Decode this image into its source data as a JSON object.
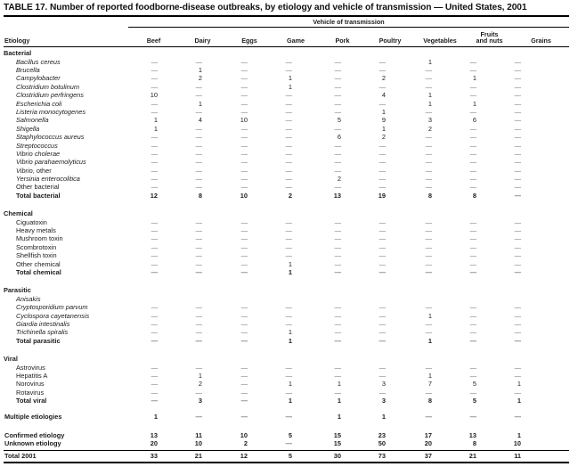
{
  "title": "TABLE 17. Number of reported foodborne-disease outbreaks, by etiology and vehicle of transmission — United States, 2001",
  "table": {
    "group_header": "Vehicle of transmission",
    "etiology_header": "Etiology",
    "columns": [
      "Beef",
      "Dairy",
      "Eggs",
      "Game",
      "Pork",
      "Poultry",
      "Vegetables",
      "Fruits\nand nuts",
      "Grains"
    ],
    "blocks": [
      {
        "type": "section",
        "label": "Bacterial",
        "rows": [
          {
            "label": "Bacillus cereus",
            "italic": true,
            "values": [
              "—",
              "—",
              "—",
              "—",
              "—",
              "—",
              "1",
              "—",
              "—"
            ]
          },
          {
            "label": "Brucella",
            "italic": true,
            "values": [
              "—",
              "1",
              "—",
              "—",
              "—",
              "—",
              "—",
              "—",
              "—"
            ]
          },
          {
            "label": "Campylobacter",
            "italic": true,
            "values": [
              "—",
              "2",
              "—",
              "1",
              "—",
              "2",
              "—",
              "1",
              "—"
            ]
          },
          {
            "label": "Clostridium botulinum",
            "italic": true,
            "values": [
              "—",
              "—",
              "—",
              "1",
              "—",
              "—",
              "—",
              "—",
              "—"
            ]
          },
          {
            "label": "Clostridium perfringens",
            "italic": true,
            "values": [
              "10",
              "—",
              "—",
              "—",
              "—",
              "4",
              "1",
              "—",
              "—"
            ]
          },
          {
            "label": "Escherichia coli",
            "italic": true,
            "values": [
              "—",
              "1",
              "—",
              "—",
              "—",
              "—",
              "1",
              "1",
              "—"
            ]
          },
          {
            "label": "Listeria monocytogenes",
            "italic": true,
            "values": [
              "—",
              "—",
              "—",
              "—",
              "—",
              "1",
              "—",
              "—",
              "—"
            ]
          },
          {
            "label": "Salmonella",
            "italic": true,
            "values": [
              "1",
              "4",
              "10",
              "—",
              "5",
              "9",
              "3",
              "6",
              "—"
            ]
          },
          {
            "label": "Shigella",
            "italic": true,
            "values": [
              "1",
              "—",
              "—",
              "—",
              "—",
              "1",
              "2",
              "—",
              "—"
            ]
          },
          {
            "label": "Staphylococcus aureus",
            "italic": true,
            "values": [
              "—",
              "—",
              "—",
              "—",
              "6",
              "2",
              "—",
              "—",
              "—"
            ]
          },
          {
            "label": "Streptococcus",
            "italic": true,
            "values": [
              "—",
              "—",
              "—",
              "—",
              "—",
              "—",
              "—",
              "—",
              "—"
            ]
          },
          {
            "label": "Vibrio cholerae",
            "italic": true,
            "values": [
              "—",
              "—",
              "—",
              "—",
              "—",
              "—",
              "—",
              "—",
              "—"
            ]
          },
          {
            "label": "Vibrio parahaemolyticus",
            "italic": true,
            "values": [
              "—",
              "—",
              "—",
              "—",
              "—",
              "—",
              "—",
              "—",
              "—"
            ]
          },
          {
            "label": "Vibrio",
            "suffix": ", other",
            "italic": true,
            "values": [
              "—",
              "—",
              "—",
              "—",
              "—",
              "—",
              "—",
              "—",
              "—"
            ]
          },
          {
            "label": "Yersinia enterocolitica",
            "italic": true,
            "values": [
              "—",
              "—",
              "—",
              "—",
              "2",
              "—",
              "—",
              "—",
              "—"
            ]
          },
          {
            "label": "Other bacterial",
            "values": [
              "—",
              "—",
              "—",
              "—",
              "—",
              "—",
              "—",
              "—",
              "—"
            ]
          },
          {
            "label": "Total bacterial",
            "bold": true,
            "values": [
              "12",
              "8",
              "10",
              "2",
              "13",
              "19",
              "8",
              "8",
              "—"
            ]
          }
        ]
      },
      {
        "type": "section",
        "label": "Chemical",
        "rows": [
          {
            "label": "Ciguatoxin",
            "values": [
              "—",
              "—",
              "—",
              "—",
              "—",
              "—",
              "—",
              "—",
              "—"
            ]
          },
          {
            "label": "Heavy metals",
            "values": [
              "—",
              "—",
              "—",
              "—",
              "—",
              "—",
              "—",
              "—",
              "—"
            ]
          },
          {
            "label": "Mushroom toxin",
            "values": [
              "—",
              "—",
              "—",
              "—",
              "—",
              "—",
              "—",
              "—",
              "—"
            ]
          },
          {
            "label": "Scombrotoxin",
            "values": [
              "—",
              "—",
              "—",
              "—",
              "—",
              "—",
              "—",
              "—",
              "—"
            ]
          },
          {
            "label": "Shellfish toxin",
            "values": [
              "—",
              "—",
              "—",
              "—",
              "—",
              "—",
              "—",
              "—",
              "—"
            ]
          },
          {
            "label": "Other chemical",
            "values": [
              "—",
              "—",
              "—",
              "1",
              "—",
              "—",
              "—",
              "—",
              "—"
            ]
          },
          {
            "label": "Total chemical",
            "bold": true,
            "values": [
              "—",
              "—",
              "—",
              "1",
              "—",
              "—",
              "—",
              "—",
              "—"
            ]
          }
        ]
      },
      {
        "type": "section",
        "label": "Parasitic",
        "rows": [
          {
            "label": "Anisakis",
            "italic": true,
            "values": [
              "",
              "",
              "",
              "",
              "",
              "",
              "",
              "",
              ""
            ]
          },
          {
            "label": "Cryptosporidium parvum",
            "italic": true,
            "values": [
              "—",
              "—",
              "—",
              "—",
              "—",
              "—",
              "—",
              "—",
              "—"
            ]
          },
          {
            "label": "Cyclospora cayetanensis",
            "italic": true,
            "values": [
              "—",
              "—",
              "—",
              "—",
              "—",
              "—",
              "1",
              "—",
              "—"
            ]
          },
          {
            "label": "Giardia intestinalis",
            "italic": true,
            "values": [
              "—",
              "—",
              "—",
              "—",
              "—",
              "—",
              "—",
              "—",
              "—"
            ]
          },
          {
            "label": "Trichinella spiralis",
            "italic": true,
            "values": [
              "—",
              "—",
              "—",
              "1",
              "—",
              "—",
              "—",
              "—",
              "—"
            ]
          },
          {
            "label": "Total parasitic",
            "bold": true,
            "values": [
              "—",
              "—",
              "—",
              "1",
              "—",
              "—",
              "1",
              "—",
              "—"
            ]
          }
        ]
      },
      {
        "type": "section",
        "label": "Viral",
        "rows": [
          {
            "label": "Astrovirus",
            "values": [
              "—",
              "—",
              "—",
              "—",
              "—",
              "—",
              "—",
              "—",
              "—"
            ]
          },
          {
            "label": "Hepatitis A",
            "values": [
              "—",
              "1",
              "—",
              "—",
              "—",
              "—",
              "1",
              "—",
              "—"
            ]
          },
          {
            "label": "Norovirus",
            "values": [
              "—",
              "2",
              "—",
              "1",
              "1",
              "3",
              "7",
              "5",
              "1"
            ]
          },
          {
            "label": "Rotavirus",
            "values": [
              "—",
              "—",
              "—",
              "—",
              "—",
              "—",
              "—",
              "—",
              "—"
            ]
          },
          {
            "label": "Total viral",
            "bold": true,
            "values": [
              "—",
              "3",
              "—",
              "1",
              "1",
              "3",
              "8",
              "5",
              "1"
            ]
          }
        ]
      },
      {
        "type": "row",
        "gap": "md",
        "row": {
          "label": "Multiple etiologies",
          "bold": true,
          "values": [
            "1",
            "—",
            "—",
            "—",
            "1",
            "1",
            "—",
            "—",
            "—"
          ]
        }
      },
      {
        "type": "row",
        "gap": "lg",
        "row": {
          "label": "Confirmed etiology",
          "bold": true,
          "values": [
            "13",
            "11",
            "10",
            "5",
            "15",
            "23",
            "17",
            "13",
            "1"
          ]
        }
      },
      {
        "type": "row",
        "row": {
          "label": "Unknown etiology",
          "bold": true,
          "values": [
            "20",
            "10",
            "2",
            "—",
            "15",
            "50",
            "20",
            "8",
            "10"
          ]
        }
      },
      {
        "type": "row",
        "grand": true,
        "row": {
          "label": "Total 2001",
          "bold": true,
          "values": [
            "33",
            "21",
            "12",
            "5",
            "30",
            "73",
            "37",
            "21",
            "11"
          ]
        }
      }
    ]
  }
}
